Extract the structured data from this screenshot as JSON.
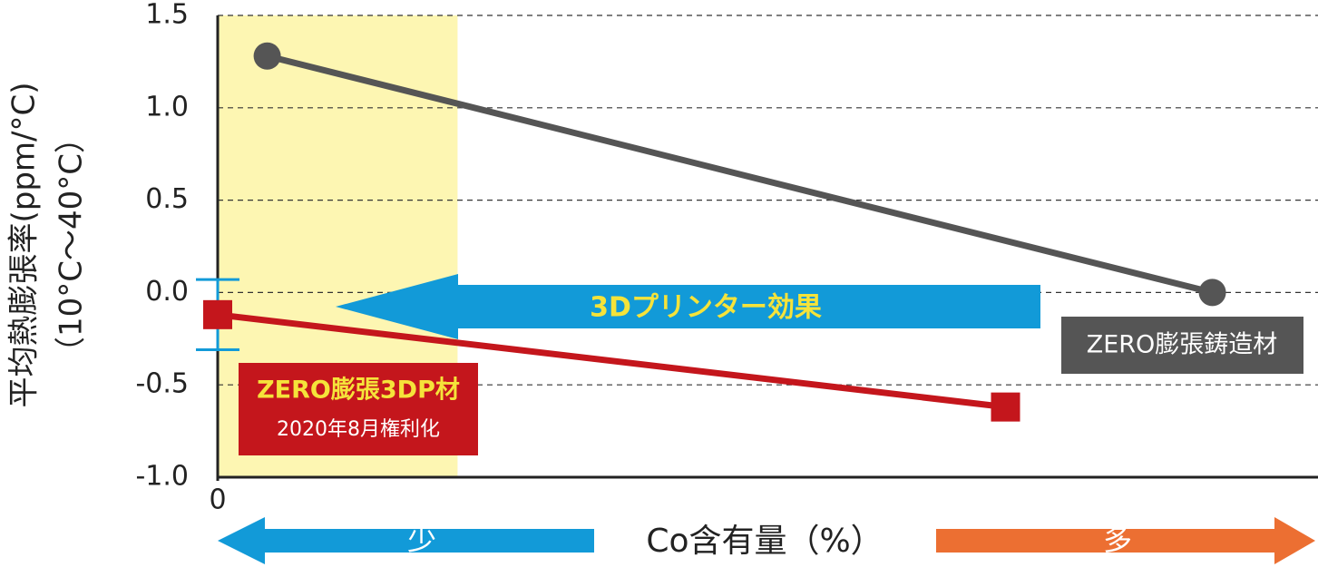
{
  "chart_data": {
    "type": "line",
    "xlabel": "Co含有量（%）",
    "ylabel": [
      "平均熱膨張率(ppm/°C)",
      "（10°C〜40°C）"
    ],
    "xlim": [
      0,
      100
    ],
    "xticks": [
      0
    ],
    "ylim": [
      -1.0,
      1.5
    ],
    "yticks": [
      1.5,
      {
        "value": 1.0,
        "label": "1.0"
      },
      0.5,
      {
        "value": 0,
        "label": "0.0"
      },
      -0.5,
      {
        "value": -1.0,
        "label": "-1.0"
      }
    ],
    "grid": true,
    "shade": {
      "xlim": [
        0,
        21.8
      ],
      "color": "#fdf6b2"
    },
    "series": [
      {
        "name": "ZERO膨張鋳造材",
        "color": "#555555",
        "marker": "circle",
        "x": [
          4.5,
          90.4
        ],
        "values": [
          1.28,
          0.0
        ]
      },
      {
        "name": "ZERO膨張3DP材",
        "color": "#c4161c",
        "marker": "square",
        "x": [
          0,
          71.6
        ],
        "values": [
          -0.12,
          -0.62
        ],
        "errors": [
          0.19,
          null
        ]
      }
    ],
    "annotations": {
      "effect": "3Dプリンター効果",
      "patent": "2020年8月権利化",
      "less": "少",
      "more": "多"
    }
  }
}
